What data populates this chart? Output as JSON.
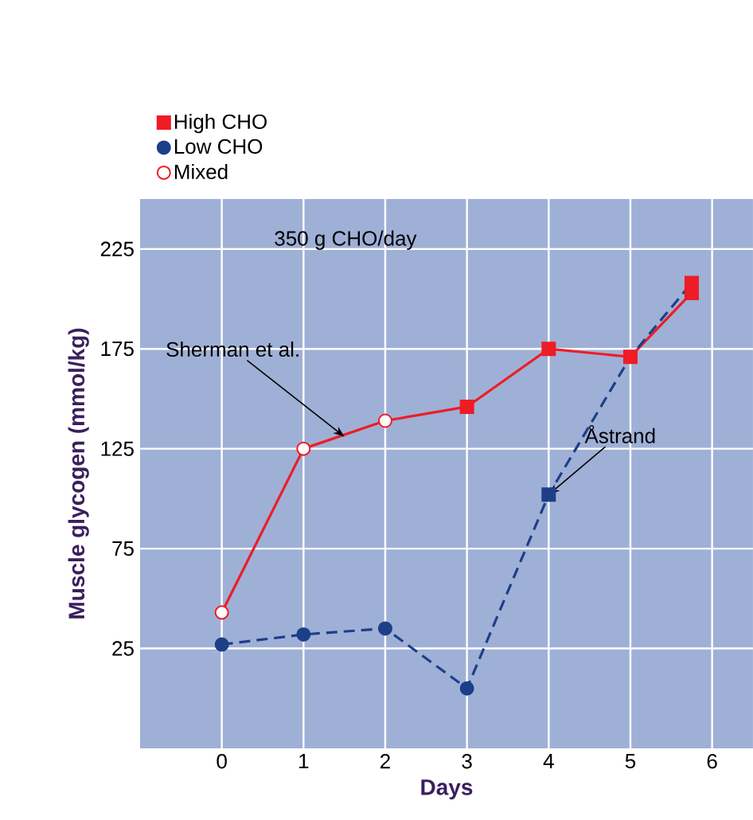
{
  "chart_data": {
    "type": "line",
    "xlabel": "Days",
    "ylabel": "Muscle glycogen (mmol/kg)",
    "xlim": [
      -1,
      6.5
    ],
    "ylim": [
      -25,
      250
    ],
    "xticks": [
      0,
      1,
      2,
      3,
      4,
      5,
      6
    ],
    "yticks": [
      25,
      75,
      125,
      175,
      225
    ],
    "grid": true,
    "legend": "top left",
    "series": [
      {
        "color": "#ee1c25",
        "line_style": "solid",
        "marker": "none",
        "x": [
          0,
          1,
          2,
          3,
          4,
          5,
          5.75
        ],
        "values": [
          43,
          125,
          139,
          146,
          175,
          171,
          203
        ]
      },
      {
        "color": "#1d3f8a",
        "line_style": "dashed",
        "marker": "none",
        "x": [
          0,
          1,
          2,
          3,
          4,
          5,
          5.75
        ],
        "values": [
          27,
          32,
          35,
          5,
          102,
          171,
          208
        ]
      },
      {
        "type": "scatter",
        "name": "High CHO",
        "marker": "square",
        "x": [
          3,
          4,
          5,
          5.75,
          4,
          5.75
        ],
        "values": [
          146,
          175,
          171,
          203,
          102,
          208
        ],
        "colors": [
          "#ee1c25",
          "#ee1c25",
          "#ee1c25",
          "#ee1c25",
          "#1d3f8a",
          "#ee1c25"
        ]
      },
      {
        "type": "scatter",
        "name": "Low CHO",
        "marker": "circle",
        "color": "#1d3f8a",
        "x": [
          0,
          1,
          2,
          3
        ],
        "values": [
          27,
          32,
          35,
          5
        ]
      },
      {
        "type": "scatter",
        "name": "Mixed",
        "marker": "circle",
        "color": "#ffffff",
        "x": [
          0,
          1,
          2
        ],
        "values": [
          43,
          125,
          139
        ]
      }
    ],
    "annotations": [
      "350 g CHO/day",
      {
        "text": "Sherman et al.",
        "x": 1.5,
        "y": 131
      },
      {
        "text": "Åstrand",
        "x": 4,
        "y": 102
      }
    ]
  }
}
